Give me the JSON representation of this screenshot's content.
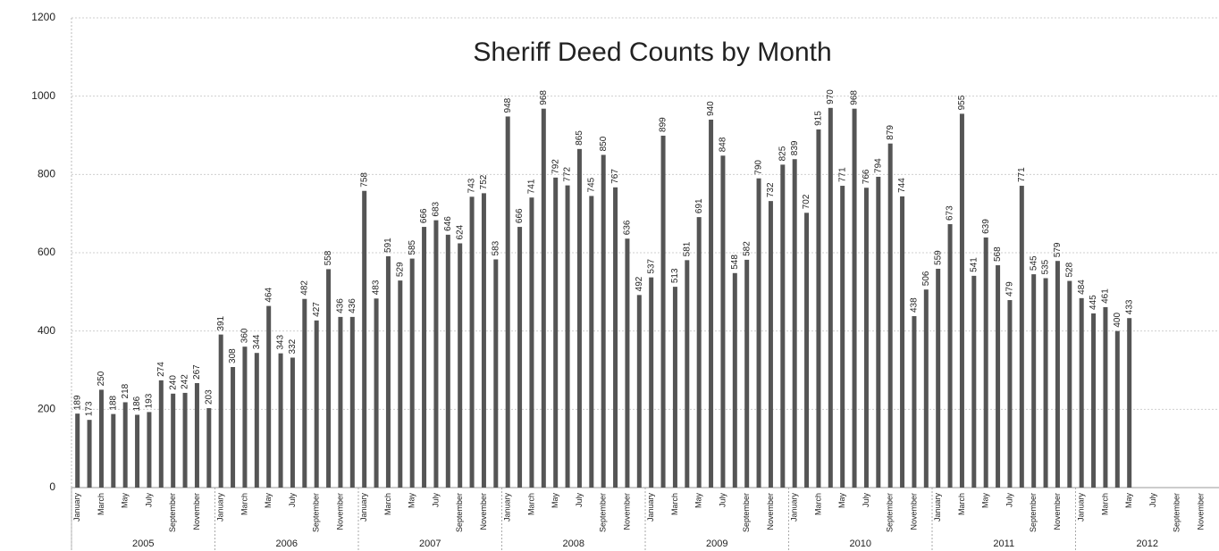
{
  "chart_data": {
    "type": "bar",
    "title": "Sheriff Deed Counts by Month",
    "categories": [
      "January",
      null,
      "March",
      null,
      "May",
      null,
      "July",
      null,
      "September",
      null,
      "November",
      null,
      "January",
      null,
      "March",
      null,
      "May",
      null,
      "July",
      null,
      "September",
      null,
      "November",
      null,
      "January",
      null,
      "March",
      null,
      "May",
      null,
      "July",
      null,
      "September",
      null,
      "November",
      null,
      "January",
      null,
      "March",
      null,
      "May",
      null,
      "July",
      null,
      "September",
      null,
      "November",
      null,
      "January",
      null,
      "March",
      null,
      "May",
      null,
      "July",
      null,
      "September",
      null,
      "November",
      null,
      "January",
      null,
      "March",
      null,
      "May",
      null,
      "July",
      null,
      "September",
      null,
      "November",
      null,
      "January",
      null,
      "March",
      null,
      "May",
      null,
      "July",
      null,
      "September",
      null,
      "November",
      null,
      "January",
      null,
      "March",
      null,
      "May",
      null,
      "July",
      null,
      "September",
      null,
      "November",
      null
    ],
    "groups": [
      "2005",
      "2006",
      "2007",
      "2008",
      "2009",
      "2010",
      "2011",
      "2012"
    ],
    "values": [
      189,
      173,
      250,
      188,
      218,
      186,
      193,
      274,
      240,
      242,
      267,
      203,
      391,
      308,
      360,
      344,
      464,
      343,
      332,
      482,
      427,
      558,
      436,
      436,
      758,
      483,
      591,
      529,
      585,
      666,
      683,
      646,
      624,
      743,
      752,
      583,
      948,
      666,
      741,
      968,
      792,
      772,
      865,
      745,
      850,
      767,
      636,
      492,
      537,
      899,
      513,
      581,
      691,
      940,
      848,
      548,
      582,
      790,
      732,
      825,
      839,
      702,
      915,
      970,
      771,
      968,
      766,
      794,
      879,
      744,
      438,
      506,
      559,
      673,
      955,
      541,
      639,
      568,
      479,
      771,
      545,
      535,
      579,
      528,
      484,
      445,
      461,
      400,
      433,
      null,
      null,
      null,
      null,
      null,
      null,
      null
    ],
    "color": "#555555",
    "ylim": [
      0,
      1200
    ],
    "yticks": [
      0,
      200,
      400,
      600,
      800,
      1000,
      1200
    ],
    "grid": true
  }
}
